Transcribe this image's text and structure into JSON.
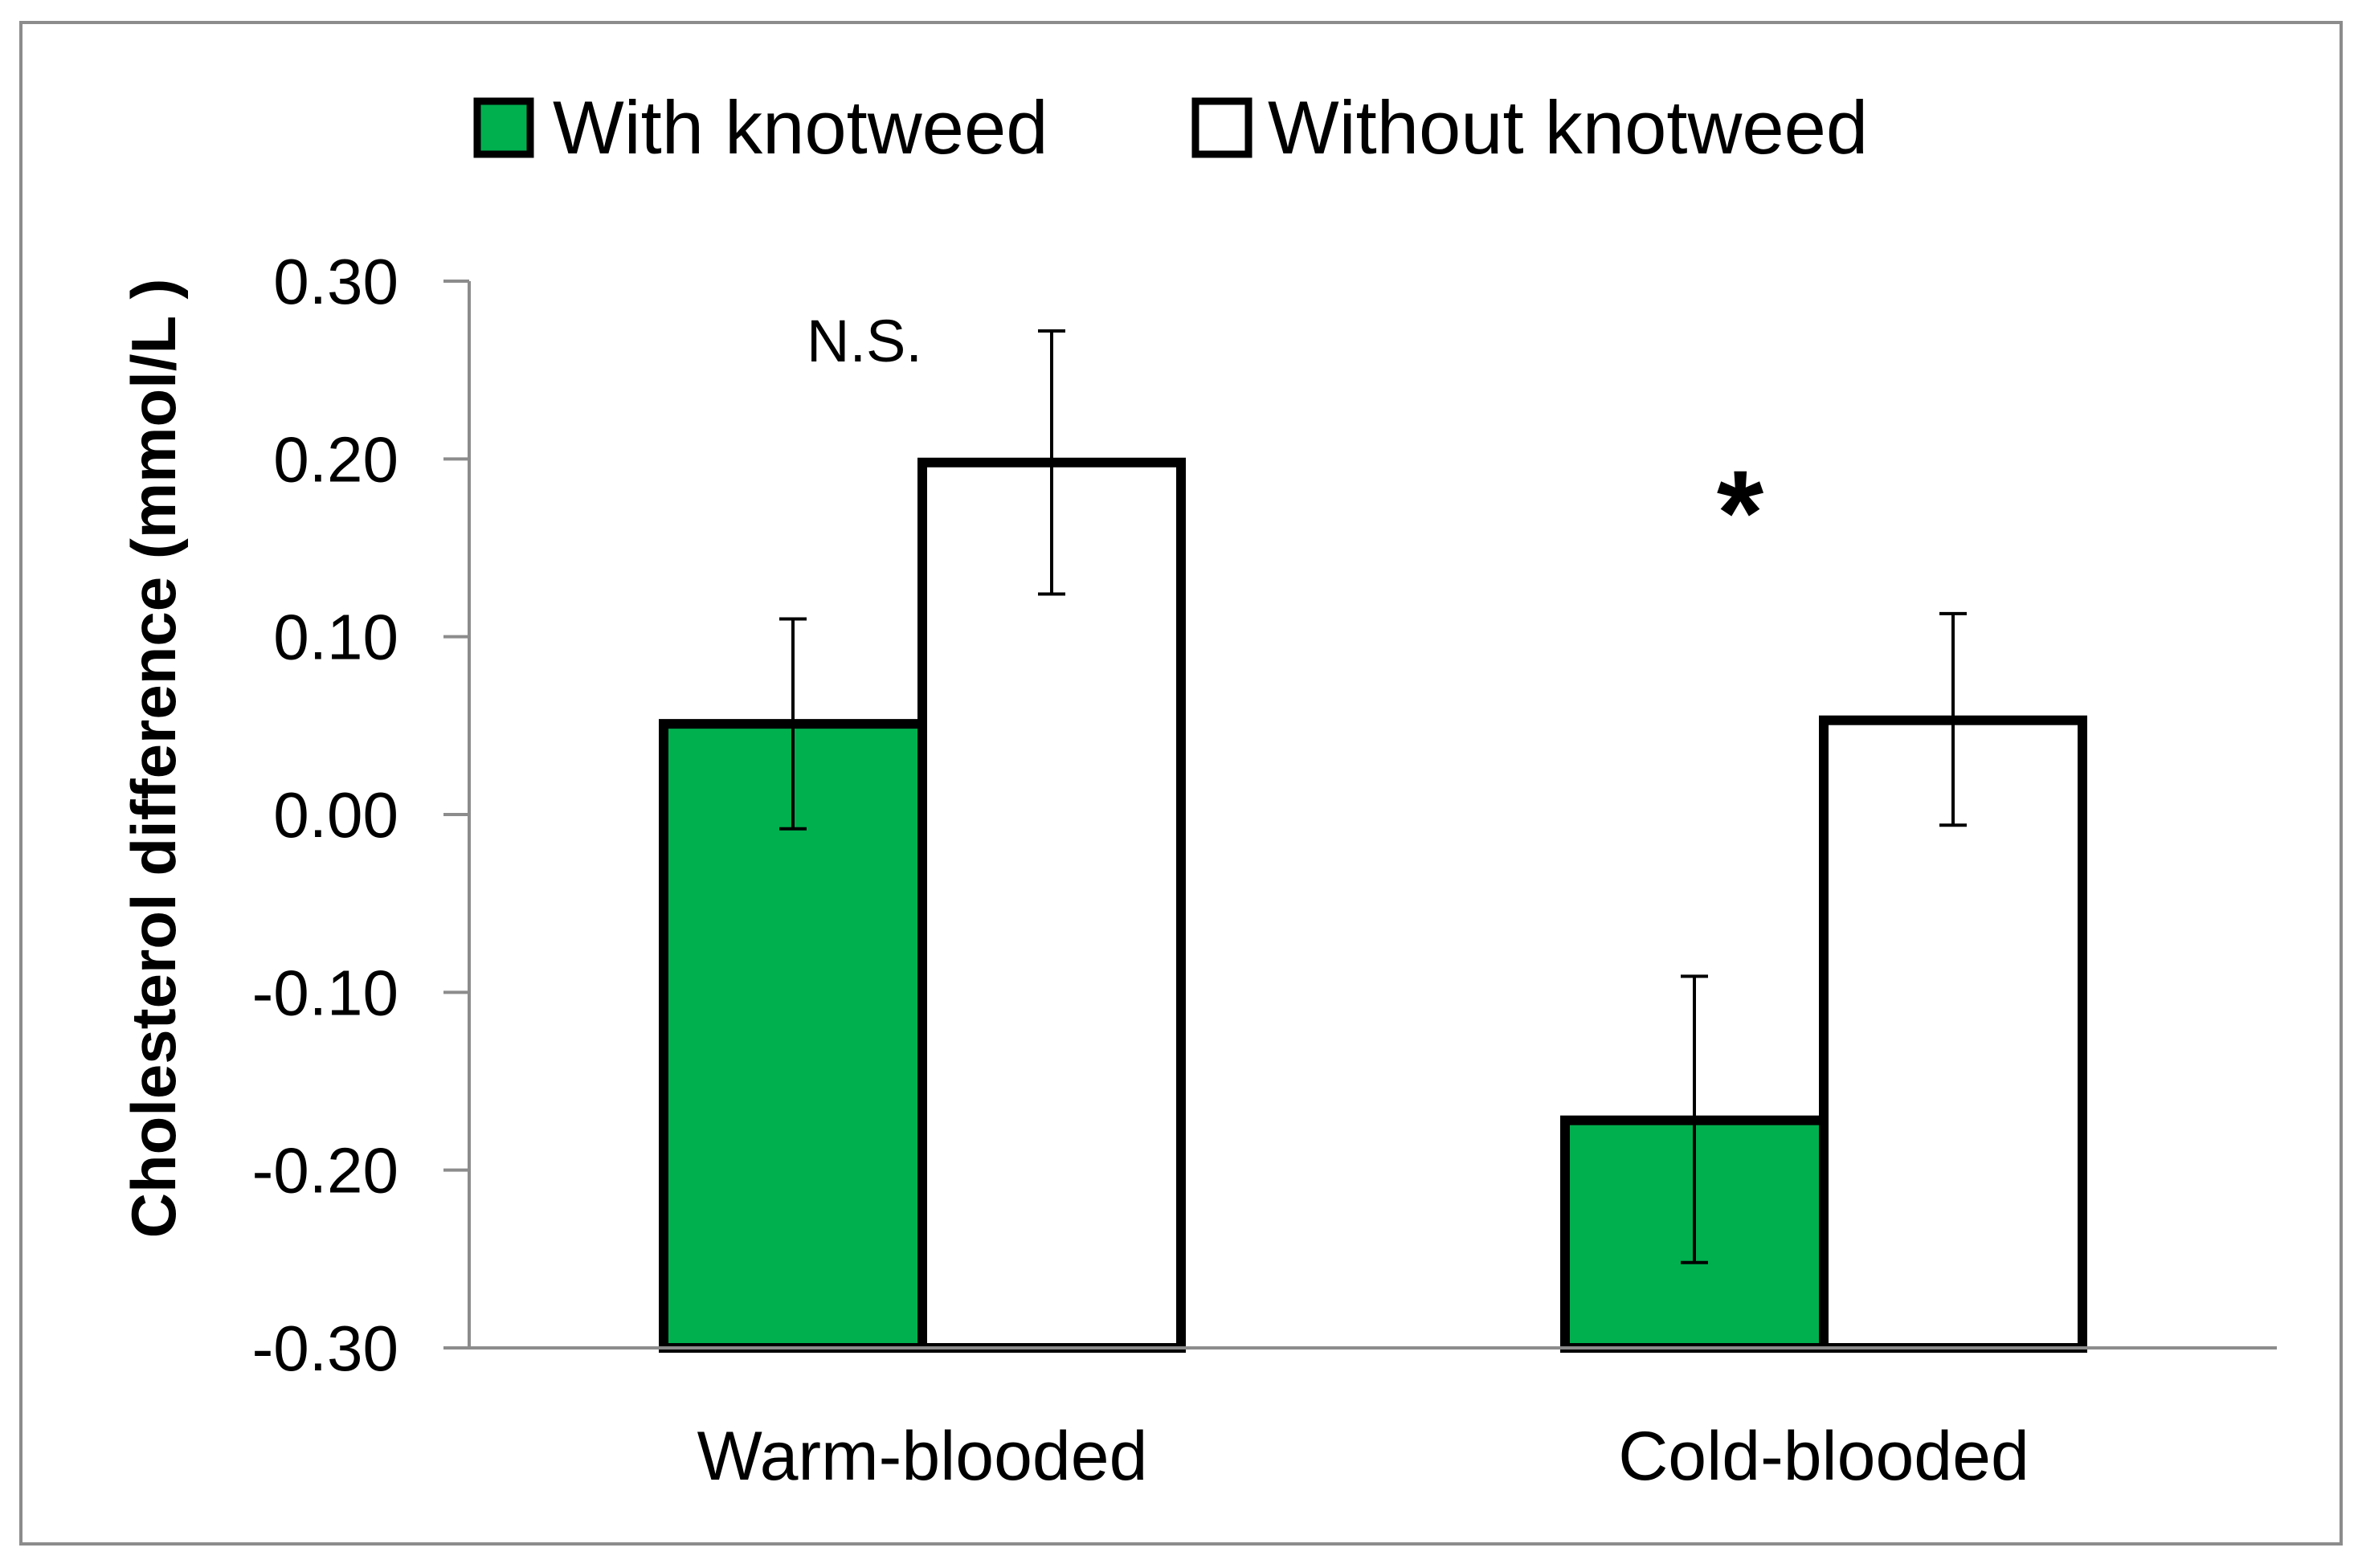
{
  "chart_data": {
    "type": "bar",
    "title": "",
    "xlabel": "",
    "ylabel": "Cholesterol difference (mmol/L )",
    "ylim": [
      -0.3,
      0.3
    ],
    "yticks": [
      0.3,
      0.2,
      0.1,
      0.0,
      -0.1,
      -0.2,
      -0.3
    ],
    "ytick_labels": [
      "0.30",
      "0.20",
      "0.10",
      "0.00",
      "-0.10",
      "-0.20",
      "-0.30"
    ],
    "categories": [
      "Warm-blooded",
      "Cold-blooded"
    ],
    "series": [
      {
        "name": "With knotweed",
        "color": "#00b04f",
        "values": [
          0.051,
          -0.172
        ],
        "error_low": [
          -0.008,
          -0.252
        ],
        "error_high": [
          0.11,
          -0.091
        ]
      },
      {
        "name": "Without knotweed",
        "color": "#ffffff",
        "values": [
          0.198,
          0.053
        ],
        "error_low": [
          0.124,
          -0.006
        ],
        "error_high": [
          0.272,
          0.113
        ]
      }
    ],
    "annotations": [
      {
        "text": "N.S.",
        "category": "Warm-blooded"
      },
      {
        "text": "*",
        "category": "Cold-blooded"
      }
    ],
    "legend_position": "top-center",
    "grid": false
  }
}
